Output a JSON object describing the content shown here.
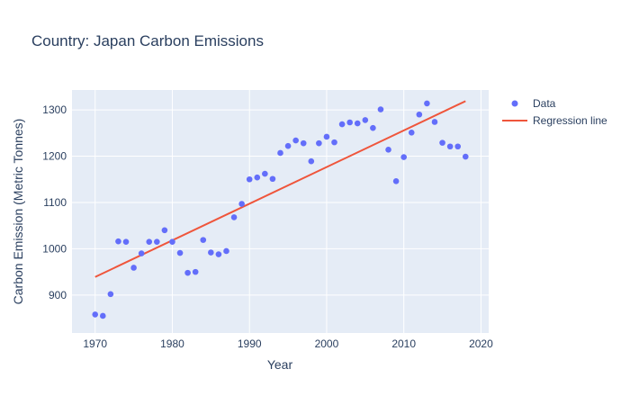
{
  "chart_data": {
    "type": "scatter",
    "title": "Country: Japan Carbon Emissions",
    "xlabel": "Year",
    "ylabel": "Carbon Emission (Metric Tonnes)",
    "xlim": [
      1967,
      2021
    ],
    "ylim": [
      818,
      1343
    ],
    "xticks": [
      1970,
      1980,
      1990,
      2000,
      2010,
      2020
    ],
    "yticks": [
      900,
      1000,
      1100,
      1200,
      1300
    ],
    "grid": true,
    "legend_position": "top-right",
    "colors": {
      "data": "#636efa",
      "regression": "#ef553b",
      "plot_bg": "#e5ecf6",
      "grid": "#ffffff",
      "text": "#2a3f5f"
    },
    "series": [
      {
        "name": "Data",
        "mode": "markers",
        "x": [
          1970,
          1971,
          1972,
          1973,
          1974,
          1975,
          1976,
          1977,
          1978,
          1979,
          1980,
          1981,
          1982,
          1983,
          1984,
          1985,
          1986,
          1987,
          1988,
          1989,
          1990,
          1991,
          1992,
          1993,
          1994,
          1995,
          1996,
          1997,
          1998,
          1999,
          2000,
          2001,
          2002,
          2003,
          2004,
          2005,
          2006,
          2007,
          2008,
          2009,
          2010,
          2011,
          2012,
          2013,
          2014,
          2015,
          2016,
          2017,
          2018
        ],
        "y": [
          858,
          855,
          902,
          1016,
          1015,
          959,
          990,
          1015,
          1015,
          1040,
          1015,
          991,
          948,
          950,
          1019,
          992,
          988,
          995,
          1068,
          1097,
          1150,
          1154,
          1162,
          1151,
          1207,
          1222,
          1234,
          1228,
          1189,
          1228,
          1242,
          1230,
          1269,
          1273,
          1271,
          1278,
          1261,
          1301,
          1214,
          1146,
          1198,
          1251,
          1290,
          1314,
          1274,
          1229,
          1221,
          1221,
          1199
        ]
      },
      {
        "name": "Regression line",
        "mode": "line",
        "x": [
          1970,
          2018
        ],
        "y": [
          939,
          1319
        ]
      }
    ]
  }
}
